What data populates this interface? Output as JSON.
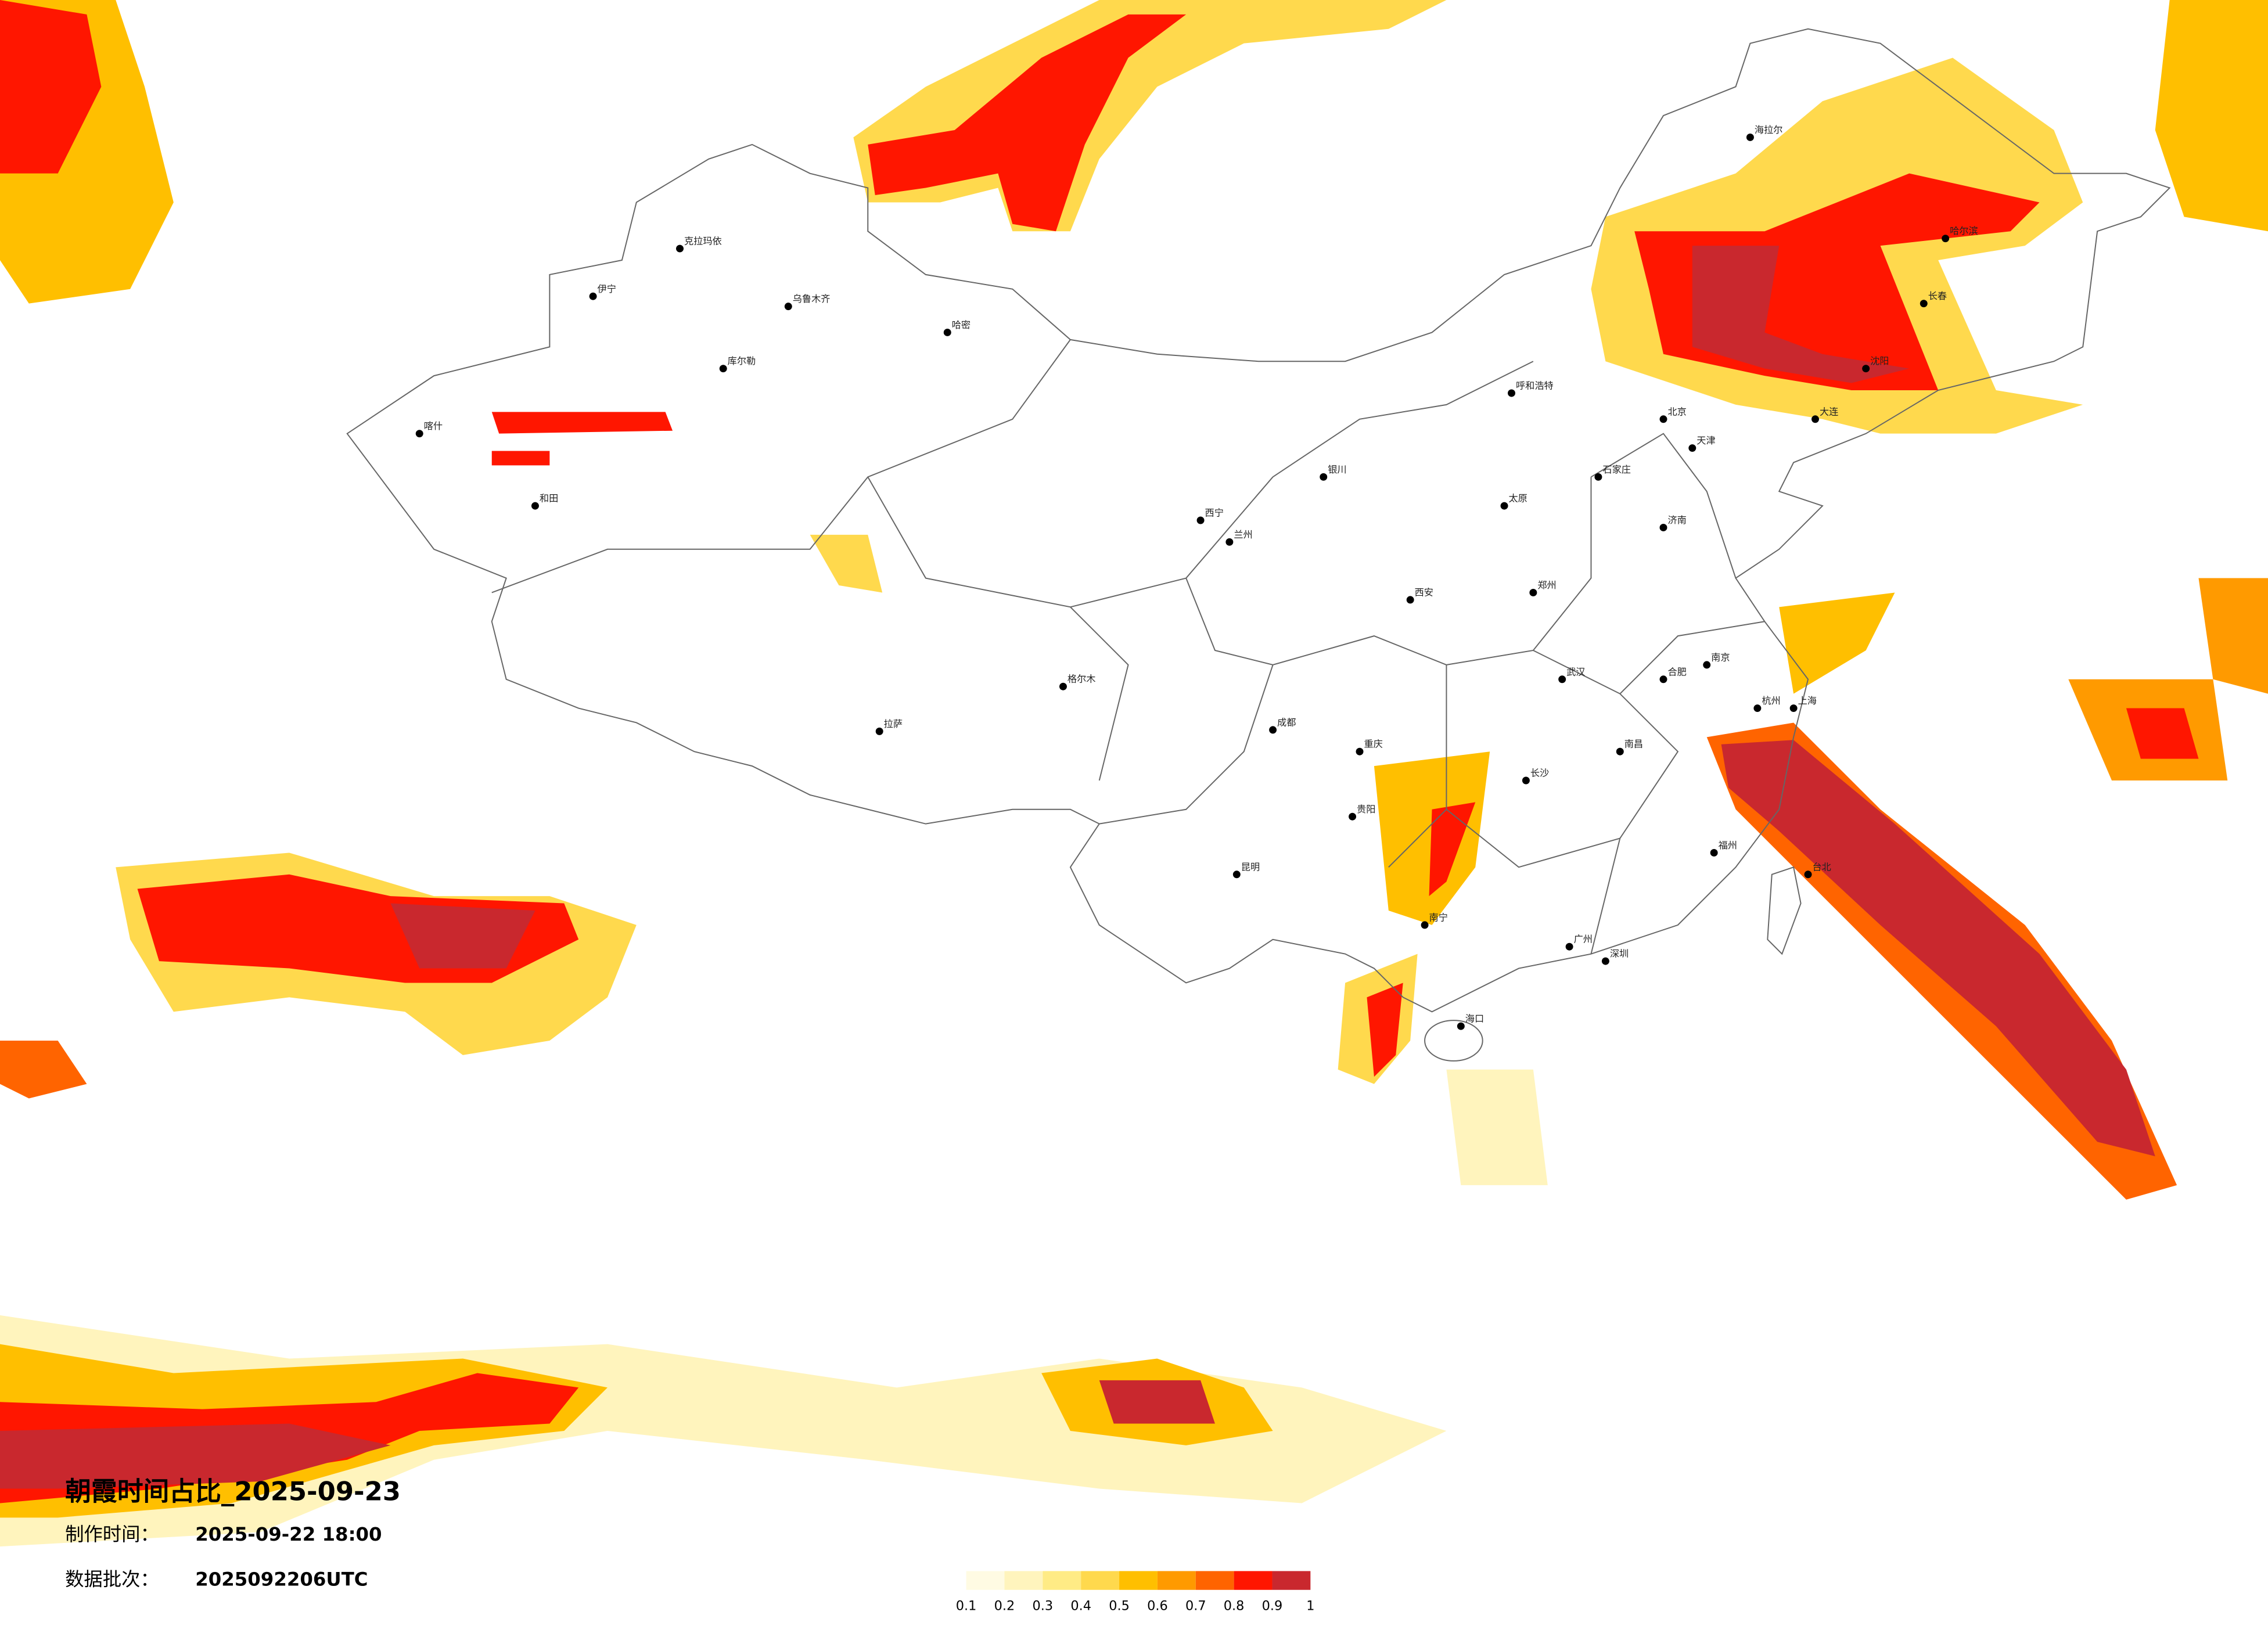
{
  "title": "朝霞时间占比_2025-09-23",
  "made": {
    "label": "制作时间：",
    "value": "2025-09-22 18:00"
  },
  "batch": {
    "label": "数据批次：",
    "value": "2025092206UTC"
  },
  "legend": {
    "colors": [
      "#fffbe3",
      "#fff4bd",
      "#ffeb85",
      "#ffd94d",
      "#ffbf00",
      "#ff9a00",
      "#ff6400",
      "#ff1600",
      "#c9282e"
    ],
    "ticks": [
      0.1,
      0.2,
      0.3,
      0.4,
      0.5,
      0.6,
      0.7,
      0.8,
      0.9,
      1
    ]
  },
  "cities": [
    "北京",
    "天津",
    "上海",
    "广州",
    "深圳",
    "重庆",
    "成都",
    "武汉",
    "西安",
    "兰州",
    "乌鲁木齐",
    "拉萨",
    "昆明",
    "南宁",
    "贵阳",
    "长沙",
    "南昌",
    "福州",
    "杭州",
    "南京",
    "合肥",
    "济南",
    "郑州",
    "太原",
    "石家庄",
    "呼和浩特",
    "银川",
    "西宁",
    "哈尔滨",
    "长春",
    "沈阳",
    "大连",
    "海口",
    "台北",
    "喀什",
    "和田",
    "哈密",
    "库尔勒",
    "格尔木",
    "伊宁",
    "海拉尔",
    "克拉玛依"
  ]
}
